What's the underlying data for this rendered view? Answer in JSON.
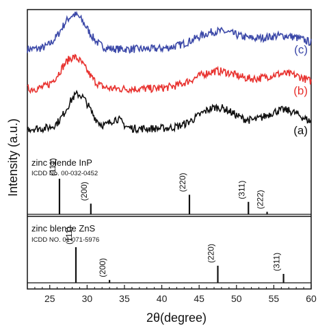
{
  "chart_data": {
    "type": "line",
    "xlabel": "2θ(degree)",
    "ylabel": "Intensity (a.u.)",
    "xlim": [
      22,
      60
    ],
    "xticks": [
      25,
      30,
      35,
      40,
      45,
      50,
      55,
      60
    ],
    "grid": false,
    "series": [
      {
        "name": "(c)",
        "color": "#3b48a8",
        "peaks": [
          [
            28.3,
            1.7,
            0.78
          ],
          [
            47.5,
            3.0,
            0.4
          ],
          [
            56.3,
            3.2,
            0.3
          ]
        ],
        "baseline": 0.16,
        "noise": 0.09
      },
      {
        "name": "(b)",
        "color": "#e8322f",
        "peaks": [
          [
            28.2,
            1.7,
            0.72
          ],
          [
            47.4,
            3.0,
            0.4
          ],
          [
            56.5,
            3.0,
            0.34
          ]
        ],
        "baseline": 0.16,
        "noise": 0.09
      },
      {
        "name": "(a)",
        "color": "#111111",
        "peaks": [
          [
            28.8,
            1.5,
            0.78
          ],
          [
            33.9,
            0.8,
            0.22
          ],
          [
            47.4,
            2.5,
            0.48
          ],
          [
            56.3,
            2.6,
            0.42
          ]
        ],
        "baseline": 0.16,
        "noise": 0.09
      }
    ],
    "references": [
      {
        "title": "zinc blende InP",
        "subtitle": "ICDD No. 00-032-0452",
        "lines": [
          {
            "x": 26.3,
            "label": "(111)",
            "intensity": 1.0
          },
          {
            "x": 30.5,
            "label": "(200)",
            "intensity": 0.3
          },
          {
            "x": 43.7,
            "label": "(220)",
            "intensity": 0.55
          },
          {
            "x": 51.6,
            "label": "(311)",
            "intensity": 0.35
          },
          {
            "x": 54.1,
            "label": "(222)",
            "intensity": 0.07
          }
        ]
      },
      {
        "title": "zinc blende ZnS",
        "subtitle": "ICDD NO. 01-071-5976",
        "lines": [
          {
            "x": 28.5,
            "label": "(111)",
            "intensity": 1.0
          },
          {
            "x": 33.0,
            "label": "(200)",
            "intensity": 0.08
          },
          {
            "x": 47.5,
            "label": "(220)",
            "intensity": 0.48
          },
          {
            "x": 56.3,
            "label": "(311)",
            "intensity": 0.25
          }
        ]
      }
    ]
  }
}
